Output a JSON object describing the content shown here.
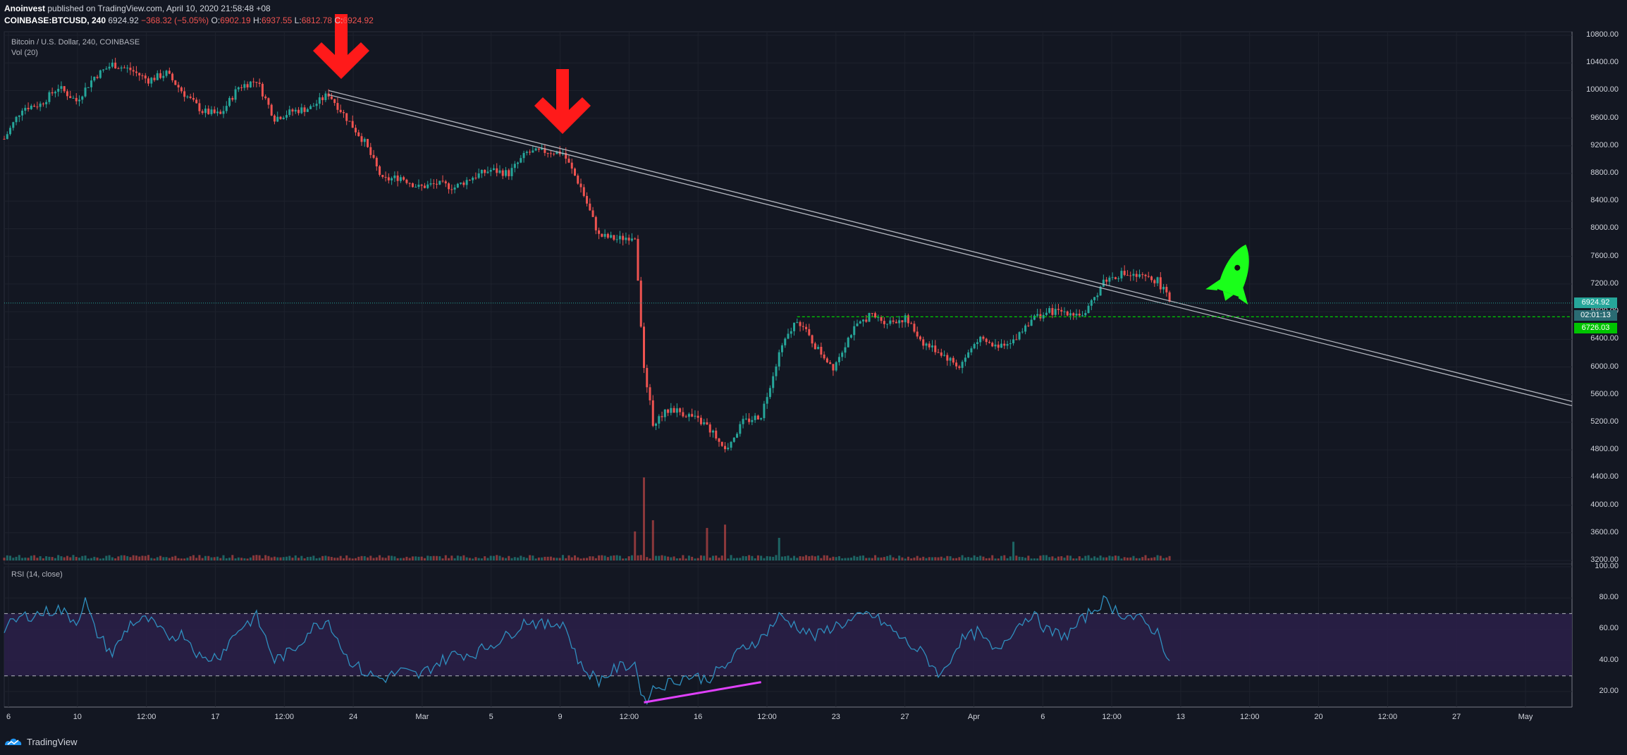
{
  "header": {
    "author": "Anoinvest",
    "published_text": "published on TradingView.com, April 10, 2020 21:58:48 +08",
    "symbol": "COINBASE:BTCUSD, 240",
    "last": "6924.92",
    "change": "−368.32 (−5.05%)",
    "open_label": "O:",
    "open": "6902.19",
    "high_label": "H:",
    "high": "6937.55",
    "low_label": "L:",
    "low": "6812.78",
    "close_label": "C:",
    "close": "6924.92"
  },
  "panes": {
    "price_title": "Bitcoin / U.S. Dollar, 240, COINBASE",
    "volume_title": "Vol (20)",
    "rsi_title": "RSI (14, close)"
  },
  "price_boxes": {
    "last_price": "6924.92",
    "countdown": "02:01:13",
    "support": "6726.03"
  },
  "colors": {
    "background": "#131722",
    "up": "#26a69a",
    "down": "#ef5350",
    "rsi_line": "#2f8fbf",
    "rsi_band": "#2a1f47",
    "support_line": "#00d000",
    "trendline": "#b2b5be",
    "arrow": "#ff1a1a",
    "rocket": "#1aff1a",
    "divergence": "#e040fb"
  },
  "footer": {
    "brand": "TradingView"
  },
  "chart_data": [
    {
      "type": "candlestick",
      "title": "Bitcoin / U.S. Dollar, 240, COINBASE",
      "y_ticks": [
        "10800.00",
        "10400.00",
        "10000.00",
        "9600.00",
        "9200.00",
        "8800.00",
        "8400.00",
        "8000.00",
        "7600.00",
        "7200.00",
        "6800.00",
        "6400.00",
        "6000.00",
        "5600.00",
        "5200.00",
        "4800.00",
        "4400.00",
        "4000.00",
        "3600.00",
        "3200.00"
      ],
      "ylim": [
        3200,
        10800
      ],
      "x_ticks": [
        "6",
        "10",
        "12:00",
        "17",
        "12:00",
        "24",
        "Mar",
        "5",
        "9",
        "12:00",
        "16",
        "12:00",
        "23",
        "27",
        "Apr",
        "6",
        "12:00",
        "13",
        "12:00",
        "20",
        "12:00",
        "27",
        "May"
      ],
      "x_range": [
        "2020-02-06",
        "2020-05-03"
      ],
      "price_path": [
        [
          "2020-02-06",
          9300
        ],
        [
          "2020-02-07",
          9750
        ],
        [
          "2020-02-08",
          9800
        ],
        [
          "2020-02-09",
          10050
        ],
        [
          "2020-02-10",
          9850
        ],
        [
          "2020-02-11",
          10200
        ],
        [
          "2020-02-12",
          10380
        ],
        [
          "2020-02-13",
          10300
        ],
        [
          "2020-02-14",
          10150
        ],
        [
          "2020-02-15",
          10250
        ],
        [
          "2020-02-16",
          9950
        ],
        [
          "2020-02-17",
          9700
        ],
        [
          "2020-02-18",
          9650
        ],
        [
          "2020-02-19",
          10050
        ],
        [
          "2020-02-20",
          10150
        ],
        [
          "2020-02-21",
          9600
        ],
        [
          "2020-02-22",
          9700
        ],
        [
          "2020-02-23",
          9750
        ],
        [
          "2020-02-24",
          9950
        ],
        [
          "2020-02-25",
          9600
        ],
        [
          "2020-02-26",
          9250
        ],
        [
          "2020-02-27",
          8700
        ],
        [
          "2020-02-28",
          8750
        ],
        [
          "2020-02-29",
          8600
        ],
        [
          "2020-03-01",
          8650
        ],
        [
          "2020-03-02",
          8600
        ],
        [
          "2020-03-03",
          8750
        ],
        [
          "2020-03-04",
          8850
        ],
        [
          "2020-03-05",
          8800
        ],
        [
          "2020-03-06",
          9100
        ],
        [
          "2020-03-07",
          9120
        ],
        [
          "2020-03-08",
          9100
        ],
        [
          "2020-03-09",
          8600
        ],
        [
          "2020-03-10",
          7900
        ],
        [
          "2020-03-11",
          7850
        ],
        [
          "2020-03-12",
          7900
        ],
        [
          "2020-03-12T12:00",
          6000
        ],
        [
          "2020-03-13",
          5200
        ],
        [
          "2020-03-14",
          5400
        ],
        [
          "2020-03-15",
          5300
        ],
        [
          "2020-03-16",
          5150
        ],
        [
          "2020-03-17",
          4800
        ],
        [
          "2020-03-18",
          5200
        ],
        [
          "2020-03-19",
          5300
        ],
        [
          "2020-03-20",
          6200
        ],
        [
          "2020-03-21",
          6700
        ],
        [
          "2020-03-22",
          6300
        ],
        [
          "2020-03-23",
          6000
        ],
        [
          "2020-03-24",
          6500
        ],
        [
          "2020-03-25",
          6750
        ],
        [
          "2020-03-26",
          6650
        ],
        [
          "2020-03-27",
          6700
        ],
        [
          "2020-03-28",
          6350
        ],
        [
          "2020-03-29",
          6200
        ],
        [
          "2020-03-30",
          6000
        ],
        [
          "2020-03-31",
          6400
        ],
        [
          "2020-04-01",
          6300
        ],
        [
          "2020-04-02",
          6400
        ],
        [
          "2020-04-03",
          6700
        ],
        [
          "2020-04-04",
          6800
        ],
        [
          "2020-04-05",
          6800
        ],
        [
          "2020-04-06",
          6750
        ],
        [
          "2020-04-07",
          7250
        ],
        [
          "2020-04-08",
          7350
        ],
        [
          "2020-04-09",
          7300
        ],
        [
          "2020-04-10",
          7250
        ],
        [
          "2020-04-10T18:00",
          6924.92
        ]
      ],
      "volume_spikes": [
        [
          "2020-03-12",
          0.45
        ],
        [
          "2020-03-12T12:00",
          0.95
        ],
        [
          "2020-03-13",
          0.6
        ],
        [
          "2020-03-16",
          0.38
        ],
        [
          "2020-03-17",
          0.5
        ],
        [
          "2020-03-20",
          0.35
        ],
        [
          "2020-04-02",
          0.25
        ]
      ],
      "support_level": 6726.03,
      "last_price": 6924.92,
      "trendline": [
        [
          "2020-02-24",
          10000
        ],
        [
          "2020-05-03",
          5500
        ]
      ]
    },
    {
      "type": "line",
      "title": "RSI (14, close)",
      "y_ticks": [
        "100.00",
        "80.00",
        "60.00",
        "40.00",
        "20.00"
      ],
      "ylim": [
        10,
        100
      ],
      "bands": [
        30,
        70
      ],
      "values": [
        [
          "2020-02-06",
          60
        ],
        [
          "2020-02-07",
          68
        ],
        [
          "2020-02-08",
          70
        ],
        [
          "2020-02-09",
          73
        ],
        [
          "2020-02-10",
          65
        ],
        [
          "2020-02-10T12:00",
          78
        ],
        [
          "2020-02-11",
          60
        ],
        [
          "2020-02-12",
          44
        ],
        [
          "2020-02-13",
          64
        ],
        [
          "2020-02-14",
          66
        ],
        [
          "2020-02-15",
          55
        ],
        [
          "2020-02-16",
          57
        ],
        [
          "2020-02-17",
          40
        ],
        [
          "2020-02-18",
          44
        ],
        [
          "2020-02-19",
          60
        ],
        [
          "2020-02-20",
          68
        ],
        [
          "2020-02-21",
          40
        ],
        [
          "2020-02-22",
          46
        ],
        [
          "2020-02-23",
          60
        ],
        [
          "2020-02-24",
          66
        ],
        [
          "2020-02-25",
          42
        ],
        [
          "2020-02-26",
          32
        ],
        [
          "2020-02-27",
          28
        ],
        [
          "2020-02-28",
          33
        ],
        [
          "2020-02-29",
          30
        ],
        [
          "2020-03-01",
          38
        ],
        [
          "2020-03-02",
          44
        ],
        [
          "2020-03-03",
          44
        ],
        [
          "2020-03-04",
          50
        ],
        [
          "2020-03-05",
          56
        ],
        [
          "2020-03-06",
          66
        ],
        [
          "2020-03-07",
          62
        ],
        [
          "2020-03-08",
          65
        ],
        [
          "2020-03-09",
          36
        ],
        [
          "2020-03-10",
          27
        ],
        [
          "2020-03-11",
          35
        ],
        [
          "2020-03-12",
          38
        ],
        [
          "2020-03-12T12:00",
          13
        ],
        [
          "2020-03-13",
          22
        ],
        [
          "2020-03-14",
          26
        ],
        [
          "2020-03-15",
          30
        ],
        [
          "2020-03-16",
          28
        ],
        [
          "2020-03-17",
          36
        ],
        [
          "2020-03-18",
          48
        ],
        [
          "2020-03-19",
          54
        ],
        [
          "2020-03-20",
          68
        ],
        [
          "2020-03-21",
          62
        ],
        [
          "2020-03-22",
          55
        ],
        [
          "2020-03-23",
          62
        ],
        [
          "2020-03-24",
          65
        ],
        [
          "2020-03-25",
          70
        ],
        [
          "2020-03-26",
          62
        ],
        [
          "2020-03-27",
          52
        ],
        [
          "2020-03-28",
          44
        ],
        [
          "2020-03-29",
          30
        ],
        [
          "2020-03-30",
          52
        ],
        [
          "2020-03-31",
          58
        ],
        [
          "2020-04-01",
          45
        ],
        [
          "2020-04-02",
          60
        ],
        [
          "2020-04-03",
          70
        ],
        [
          "2020-04-04",
          58
        ],
        [
          "2020-04-05",
          56
        ],
        [
          "2020-04-06",
          68
        ],
        [
          "2020-04-07",
          78
        ],
        [
          "2020-04-08",
          70
        ],
        [
          "2020-04-09",
          66
        ],
        [
          "2020-04-10",
          58
        ],
        [
          "2020-04-10T18:00",
          38
        ]
      ],
      "divergence_line": [
        [
          "2020-03-12T12:00",
          13
        ],
        [
          "2020-03-19",
          26
        ]
      ]
    }
  ]
}
